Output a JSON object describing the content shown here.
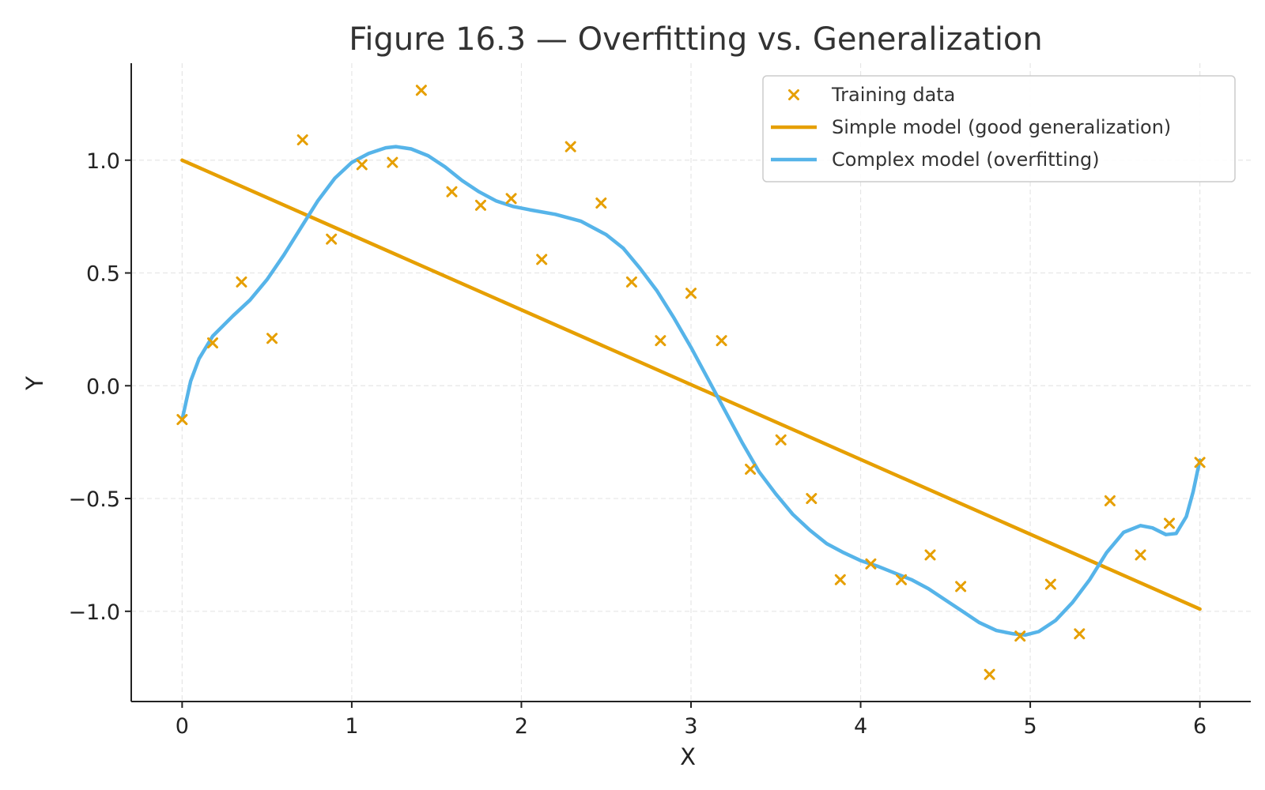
{
  "chart_data": {
    "type": "scatter",
    "title": "Figure 16.3 — Overfitting vs. Generalization",
    "xlabel": "X",
    "ylabel": "Y",
    "xlim": [
      -0.3,
      6.3
    ],
    "ylim": [
      -1.4,
      1.43
    ],
    "x_ticks": [
      0,
      1,
      2,
      3,
      4,
      5,
      6
    ],
    "x_tick_labels": [
      "0",
      "1",
      "2",
      "3",
      "4",
      "5",
      "6"
    ],
    "y_ticks": [
      1.0,
      0.5,
      0.0,
      -0.5,
      -1.0
    ],
    "y_tick_labels": [
      "1.0",
      "0.5",
      "0.0",
      "−0.5",
      "−1.0"
    ],
    "grid": true,
    "legend_position": "top-right",
    "colors": {
      "training": "#E69F00",
      "simple": "#E69F00",
      "complex": "#56B4E9",
      "axis": "#222222",
      "grid": "#e6e6e6"
    },
    "series": [
      {
        "name": "Training data",
        "kind": "scatter",
        "marker": "x",
        "points": [
          [
            0.0,
            -0.15
          ],
          [
            0.18,
            0.19
          ],
          [
            0.35,
            0.46
          ],
          [
            0.53,
            0.21
          ],
          [
            0.71,
            1.09
          ],
          [
            0.88,
            0.65
          ],
          [
            1.06,
            0.98
          ],
          [
            1.24,
            0.99
          ],
          [
            1.41,
            1.31
          ],
          [
            1.59,
            0.86
          ],
          [
            1.76,
            0.8
          ],
          [
            1.94,
            0.83
          ],
          [
            2.12,
            0.56
          ],
          [
            2.29,
            1.06
          ],
          [
            2.47,
            0.81
          ],
          [
            2.65,
            0.46
          ],
          [
            2.82,
            0.2
          ],
          [
            3.0,
            0.41
          ],
          [
            3.18,
            0.2
          ],
          [
            3.35,
            -0.37
          ],
          [
            3.53,
            -0.24
          ],
          [
            3.71,
            -0.5
          ],
          [
            3.88,
            -0.86
          ],
          [
            4.06,
            -0.79
          ],
          [
            4.24,
            -0.86
          ],
          [
            4.41,
            -0.75
          ],
          [
            4.59,
            -0.89
          ],
          [
            4.76,
            -1.28
          ],
          [
            4.94,
            -1.11
          ],
          [
            5.12,
            -0.88
          ],
          [
            5.29,
            -1.1
          ],
          [
            5.47,
            -0.51
          ],
          [
            5.65,
            -0.75
          ],
          [
            5.82,
            -0.61
          ],
          [
            6.0,
            -0.34
          ]
        ]
      },
      {
        "name": "Simple model (good generalization)",
        "kind": "line",
        "points": [
          [
            0,
            1.0
          ],
          [
            6,
            -0.99
          ]
        ]
      },
      {
        "name": "Complex model (overfitting)",
        "kind": "line",
        "points": [
          [
            0.0,
            -0.15
          ],
          [
            0.05,
            0.02
          ],
          [
            0.1,
            0.12
          ],
          [
            0.18,
            0.22
          ],
          [
            0.3,
            0.31
          ],
          [
            0.4,
            0.38
          ],
          [
            0.5,
            0.47
          ],
          [
            0.6,
            0.58
          ],
          [
            0.7,
            0.7
          ],
          [
            0.8,
            0.82
          ],
          [
            0.9,
            0.92
          ],
          [
            1.0,
            0.99
          ],
          [
            1.1,
            1.03
          ],
          [
            1.2,
            1.055
          ],
          [
            1.26,
            1.06
          ],
          [
            1.35,
            1.05
          ],
          [
            1.45,
            1.02
          ],
          [
            1.55,
            0.97
          ],
          [
            1.65,
            0.91
          ],
          [
            1.75,
            0.86
          ],
          [
            1.85,
            0.82
          ],
          [
            1.95,
            0.795
          ],
          [
            2.05,
            0.78
          ],
          [
            2.2,
            0.76
          ],
          [
            2.35,
            0.73
          ],
          [
            2.5,
            0.67
          ],
          [
            2.6,
            0.61
          ],
          [
            2.7,
            0.52
          ],
          [
            2.8,
            0.42
          ],
          [
            2.9,
            0.3
          ],
          [
            3.0,
            0.17
          ],
          [
            3.1,
            0.03
          ],
          [
            3.2,
            -0.11
          ],
          [
            3.3,
            -0.25
          ],
          [
            3.4,
            -0.38
          ],
          [
            3.5,
            -0.48
          ],
          [
            3.6,
            -0.57
          ],
          [
            3.7,
            -0.64
          ],
          [
            3.8,
            -0.7
          ],
          [
            3.9,
            -0.74
          ],
          [
            4.0,
            -0.775
          ],
          [
            4.1,
            -0.8
          ],
          [
            4.2,
            -0.83
          ],
          [
            4.3,
            -0.86
          ],
          [
            4.4,
            -0.9
          ],
          [
            4.5,
            -0.95
          ],
          [
            4.6,
            -1.0
          ],
          [
            4.7,
            -1.05
          ],
          [
            4.8,
            -1.085
          ],
          [
            4.9,
            -1.1
          ],
          [
            4.97,
            -1.105
          ],
          [
            5.05,
            -1.09
          ],
          [
            5.15,
            -1.04
          ],
          [
            5.25,
            -0.96
          ],
          [
            5.35,
            -0.86
          ],
          [
            5.45,
            -0.74
          ],
          [
            5.55,
            -0.65
          ],
          [
            5.65,
            -0.62
          ],
          [
            5.72,
            -0.63
          ],
          [
            5.8,
            -0.66
          ],
          [
            5.86,
            -0.655
          ],
          [
            5.92,
            -0.58
          ],
          [
            5.96,
            -0.47
          ],
          [
            6.0,
            -0.33
          ]
        ]
      }
    ]
  }
}
